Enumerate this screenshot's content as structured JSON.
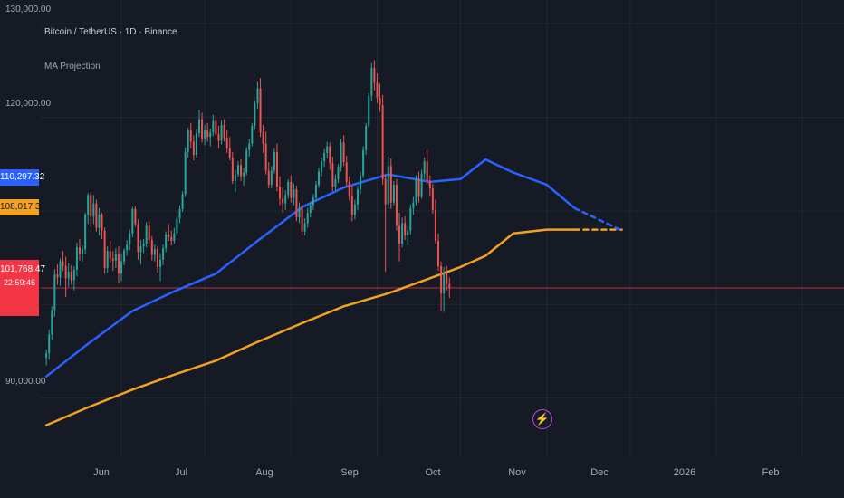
{
  "chart_data": {
    "type": "candlestick",
    "title": "Bitcoin / TetherUS · 1D · Binance",
    "indicator": "MA Projection",
    "x_labels": [
      {
        "label": "Jun",
        "date": "2025-06-01"
      },
      {
        "label": "Jul",
        "date": "2025-07-01"
      },
      {
        "label": "Aug",
        "date": "2025-08-01"
      },
      {
        "label": "Sep",
        "date": "2025-09-01"
      },
      {
        "label": "Oct",
        "date": "2025-10-01"
      },
      {
        "label": "Nov",
        "date": "2025-11-01"
      },
      {
        "label": "Dec",
        "date": "2025-12-01"
      },
      {
        "label": "2026",
        "date": "2026-01-01"
      },
      {
        "label": "Feb",
        "date": "2026-02-01"
      }
    ],
    "y_ticks": [
      "130,000.00",
      "120,000.00",
      "90,000.00"
    ],
    "ylim": [
      86000,
      131000
    ],
    "grid": true,
    "badges": {
      "ma_fast": "110,297.32",
      "ma_slow": "108,017.36",
      "last_price": "101,768.47",
      "countdown": "22:59:46"
    },
    "colors": {
      "background": "#161a25",
      "grid": "#232735",
      "up": "#26a69a",
      "down": "#ef5350",
      "ma_fast": "#2962ff",
      "ma_slow": "#f4a022",
      "price_line": "#f23645"
    },
    "ohlc_start_date": "2025-05-05",
    "ohlc": [
      [
        94300,
        95200,
        93500,
        94800
      ],
      [
        94800,
        97300,
        94100,
        96800
      ],
      [
        96800,
        99800,
        96200,
        99400
      ],
      [
        99400,
        103800,
        98700,
        103200
      ],
      [
        103200,
        104300,
        102100,
        102900
      ],
      [
        102900,
        104900,
        102000,
        104600
      ],
      [
        104600,
        105700,
        103600,
        104100
      ],
      [
        104100,
        105100,
        100800,
        102800
      ],
      [
        102800,
        104400,
        101900,
        103500
      ],
      [
        103500,
        104200,
        102100,
        102600
      ],
      [
        102600,
        104100,
        101500,
        103700
      ],
      [
        103700,
        106600,
        103000,
        106100
      ],
      [
        106100,
        107000,
        104700,
        105400
      ],
      [
        105400,
        106300,
        104600,
        105900
      ],
      [
        105900,
        109800,
        105400,
        109600
      ],
      [
        109600,
        111900,
        108600,
        111700
      ],
      [
        111700,
        112000,
        108300,
        109400
      ],
      [
        109400,
        111700,
        108600,
        110800
      ],
      [
        110800,
        111200,
        107800,
        108200
      ],
      [
        108200,
        110300,
        107400,
        109600
      ],
      [
        109600,
        109800,
        107000,
        107900
      ],
      [
        107900,
        108200,
        103300,
        103900
      ],
      [
        103900,
        106200,
        103400,
        105700
      ],
      [
        105700,
        106800,
        104500,
        104900
      ],
      [
        104900,
        105700,
        103600,
        104700
      ],
      [
        104700,
        106000,
        103900,
        105400
      ],
      [
        105400,
        106200,
        102300,
        103300
      ],
      [
        103300,
        105500,
        102500,
        104600
      ],
      [
        104600,
        106000,
        104200,
        105800
      ],
      [
        105800,
        106900,
        105200,
        106400
      ],
      [
        106400,
        108000,
        105800,
        107600
      ],
      [
        107600,
        110400,
        107200,
        110200
      ],
      [
        110200,
        110500,
        108300,
        108600
      ],
      [
        108600,
        109100,
        104800,
        105600
      ],
      [
        105600,
        106900,
        104300,
        106200
      ],
      [
        106200,
        107000,
        105500,
        106500
      ],
      [
        106500,
        108800,
        106100,
        108400
      ],
      [
        108400,
        108900,
        106500,
        106900
      ],
      [
        106900,
        107300,
        104700,
        105300
      ],
      [
        105300,
        106400,
        104600,
        105900
      ],
      [
        105900,
        106200,
        103400,
        104000
      ],
      [
        104000,
        105500,
        102500,
        104800
      ],
      [
        104800,
        106400,
        104200,
        106000
      ],
      [
        106000,
        107800,
        105600,
        107500
      ],
      [
        107500,
        108600,
        106800,
        107200
      ],
      [
        107200,
        107900,
        106300,
        106800
      ],
      [
        106800,
        108200,
        106500,
        107600
      ],
      [
        107600,
        109500,
        107300,
        109200
      ],
      [
        109200,
        110600,
        108700,
        110200
      ],
      [
        110200,
        112100,
        109900,
        111800
      ],
      [
        111800,
        116800,
        111500,
        116300
      ],
      [
        116300,
        118900,
        115700,
        118600
      ],
      [
        118600,
        119400,
        116700,
        117400
      ],
      [
        117400,
        118100,
        115400,
        116000
      ],
      [
        116000,
        118700,
        115700,
        118300
      ],
      [
        118300,
        120800,
        117900,
        119800
      ],
      [
        119800,
        120500,
        117300,
        117700
      ],
      [
        117700,
        119200,
        117000,
        118600
      ],
      [
        118600,
        119400,
        117400,
        117900
      ],
      [
        117900,
        118800,
        116900,
        118400
      ],
      [
        118400,
        120300,
        118000,
        119600
      ],
      [
        119600,
        120200,
        117800,
        118200
      ],
      [
        118200,
        119100,
        116700,
        117500
      ],
      [
        117500,
        119700,
        117100,
        119200
      ],
      [
        119200,
        119800,
        117400,
        117800
      ],
      [
        117800,
        118600,
        116200,
        116700
      ],
      [
        116700,
        117900,
        115400,
        115700
      ],
      [
        115700,
        116300,
        112900,
        113200
      ],
      [
        113200,
        114400,
        112000,
        113900
      ],
      [
        113900,
        115300,
        113600,
        114900
      ],
      [
        114900,
        115500,
        113200,
        113700
      ],
      [
        113700,
        114600,
        112700,
        114100
      ],
      [
        114100,
        116800,
        113800,
        116500
      ],
      [
        116500,
        117700,
        115800,
        117200
      ],
      [
        117200,
        119400,
        116900,
        119100
      ],
      [
        119100,
        121800,
        118700,
        121500
      ],
      [
        121500,
        123800,
        120900,
        123100
      ],
      [
        123100,
        124200,
        117900,
        118400
      ],
      [
        118400,
        119200,
        116200,
        117200
      ],
      [
        117200,
        118500,
        113900,
        114300
      ],
      [
        114300,
        115200,
        112400,
        112800
      ],
      [
        112800,
        114800,
        112400,
        114300
      ],
      [
        114300,
        116700,
        114000,
        116300
      ],
      [
        116300,
        117200,
        112100,
        112600
      ],
      [
        112600,
        113700,
        110600,
        111300
      ],
      [
        111300,
        112500,
        109800,
        110800
      ],
      [
        110800,
        112200,
        110100,
        111700
      ],
      [
        111700,
        113400,
        111300,
        113100
      ],
      [
        113100,
        113800,
        110900,
        111400
      ],
      [
        111400,
        112900,
        110600,
        112300
      ],
      [
        112300,
        112700,
        108900,
        109300
      ],
      [
        109300,
        110900,
        108700,
        110300
      ],
      [
        110300,
        111100,
        107400,
        107800
      ],
      [
        107800,
        109200,
        107400,
        108700
      ],
      [
        108700,
        110300,
        108200,
        109800
      ],
      [
        109800,
        111000,
        109300,
        110600
      ],
      [
        110600,
        111800,
        110100,
        111400
      ],
      [
        111400,
        113200,
        111100,
        112800
      ],
      [
        112800,
        114600,
        112500,
        114200
      ],
      [
        114200,
        115700,
        113700,
        115300
      ],
      [
        115300,
        116600,
        114700,
        116200
      ],
      [
        116200,
        117400,
        115600,
        116900
      ],
      [
        116900,
        117300,
        114400,
        115100
      ],
      [
        115100,
        115800,
        112100,
        112600
      ],
      [
        112600,
        113900,
        112200,
        113400
      ],
      [
        113400,
        115000,
        113000,
        114700
      ],
      [
        114700,
        117700,
        114200,
        117300
      ],
      [
        117300,
        118100,
        114800,
        115200
      ],
      [
        115200,
        115900,
        112600,
        113100
      ],
      [
        113100,
        113700,
        111100,
        111600
      ],
      [
        111600,
        112700,
        108900,
        109600
      ],
      [
        109600,
        111200,
        109100,
        110700
      ],
      [
        110700,
        112700,
        110100,
        112300
      ],
      [
        112300,
        114200,
        111800,
        113800
      ],
      [
        113800,
        116900,
        113500,
        116500
      ],
      [
        116500,
        119400,
        116000,
        119100
      ],
      [
        119100,
        122600,
        118900,
        122300
      ],
      [
        122300,
        125800,
        121700,
        125300
      ],
      [
        125300,
        126100,
        122900,
        123700
      ],
      [
        123700,
        124700,
        121500,
        122100
      ],
      [
        122100,
        123600,
        120600,
        121300
      ],
      [
        121300,
        122400,
        112800,
        113400
      ],
      [
        113400,
        113900,
        103500,
        110700
      ],
      [
        110700,
        115800,
        110200,
        114800
      ],
      [
        114800,
        115600,
        110200,
        110900
      ],
      [
        110900,
        113200,
        110600,
        112800
      ],
      [
        112800,
        113400,
        107900,
        108400
      ],
      [
        108400,
        109800,
        104600,
        106500
      ],
      [
        106500,
        109300,
        106100,
        108700
      ],
      [
        108700,
        109400,
        106900,
        107400
      ],
      [
        107400,
        108400,
        106300,
        107900
      ],
      [
        107900,
        110700,
        107500,
        110300
      ],
      [
        110300,
        111500,
        109600,
        110900
      ],
      [
        110900,
        113800,
        110600,
        113400
      ],
      [
        113400,
        114200,
        110900,
        111500
      ],
      [
        111500,
        114400,
        111300,
        114000
      ],
      [
        114000,
        115700,
        113400,
        115300
      ],
      [
        115300,
        116500,
        112800,
        113200
      ],
      [
        113200,
        113800,
        111600,
        112400
      ],
      [
        112400,
        112900,
        109700,
        110100
      ],
      [
        110100,
        111200,
        106500,
        106800
      ],
      [
        106800,
        107600,
        103600,
        104100
      ],
      [
        104100,
        104600,
        99300,
        101200
      ],
      [
        101200,
        104000,
        99200,
        103400
      ],
      [
        103400,
        104100,
        101500,
        102200
      ],
      [
        102200,
        102900,
        100700,
        101768
      ]
    ],
    "ma_fast": [
      {
        "date": "2025-05-05",
        "value": 92300
      },
      {
        "date": "2025-05-20",
        "value": 95800
      },
      {
        "date": "2025-06-05",
        "value": 99300
      },
      {
        "date": "2025-06-20",
        "value": 101400
      },
      {
        "date": "2025-07-05",
        "value": 103300
      },
      {
        "date": "2025-07-20",
        "value": 106800
      },
      {
        "date": "2025-08-05",
        "value": 110400
      },
      {
        "date": "2025-08-20",
        "value": 112500
      },
      {
        "date": "2025-09-05",
        "value": 113900
      },
      {
        "date": "2025-09-20",
        "value": 113100
      },
      {
        "date": "2025-10-01",
        "value": 113400
      },
      {
        "date": "2025-10-10",
        "value": 115500
      },
      {
        "date": "2025-10-20",
        "value": 114100
      },
      {
        "date": "2025-11-01",
        "value": 112800
      },
      {
        "date": "2025-11-11",
        "value": 110300
      }
    ],
    "ma_slow": [
      {
        "date": "2025-05-05",
        "value": 87100
      },
      {
        "date": "2025-05-20",
        "value": 89000
      },
      {
        "date": "2025-06-05",
        "value": 90900
      },
      {
        "date": "2025-06-20",
        "value": 92500
      },
      {
        "date": "2025-07-05",
        "value": 94000
      },
      {
        "date": "2025-07-20",
        "value": 96000
      },
      {
        "date": "2025-08-05",
        "value": 98000
      },
      {
        "date": "2025-08-20",
        "value": 99800
      },
      {
        "date": "2025-09-05",
        "value": 101200
      },
      {
        "date": "2025-09-20",
        "value": 102800
      },
      {
        "date": "2025-10-01",
        "value": 104000
      },
      {
        "date": "2025-10-10",
        "value": 105200
      },
      {
        "date": "2025-10-20",
        "value": 107600
      },
      {
        "date": "2025-11-01",
        "value": 108000
      },
      {
        "date": "2025-11-11",
        "value": 108000
      }
    ],
    "projection_fast": [
      {
        "date": "2025-11-11",
        "value": 110300
      },
      {
        "date": "2025-11-28",
        "value": 107900
      }
    ],
    "projection_slow": [
      {
        "date": "2025-11-11",
        "value": 108000
      },
      {
        "date": "2025-11-28",
        "value": 108000
      }
    ]
  }
}
